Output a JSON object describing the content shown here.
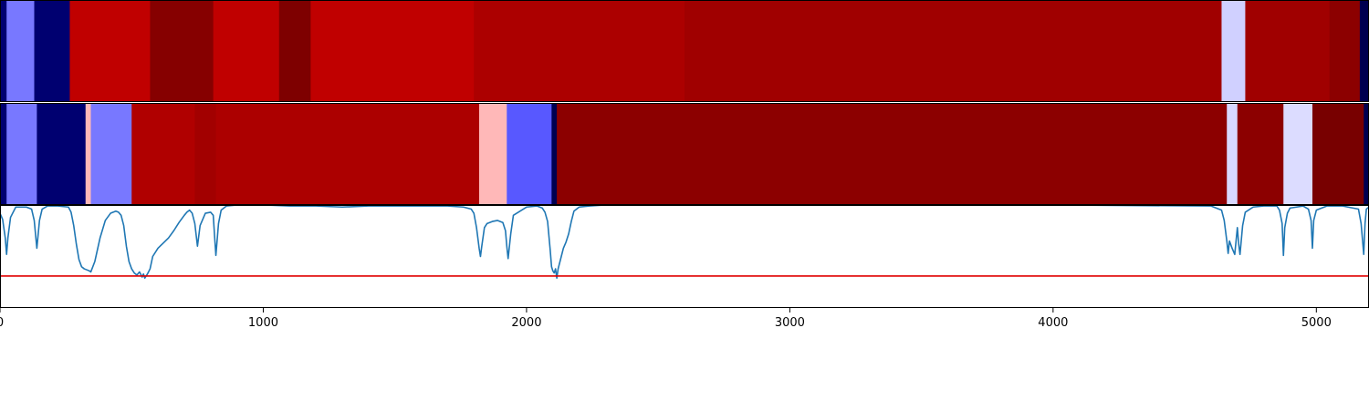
{
  "chart_data": [
    {
      "type": "heatmap",
      "xlim": [
        0,
        5200
      ],
      "segments": [
        {
          "start": 0,
          "end": 25,
          "color": "#000070"
        },
        {
          "start": 25,
          "end": 130,
          "color": "#7878ff"
        },
        {
          "start": 130,
          "end": 265,
          "color": "#000070"
        },
        {
          "start": 265,
          "end": 570,
          "color": "#c00000"
        },
        {
          "start": 570,
          "end": 810,
          "color": "#860000"
        },
        {
          "start": 810,
          "end": 1060,
          "color": "#c00000"
        },
        {
          "start": 1060,
          "end": 1180,
          "color": "#7e0000"
        },
        {
          "start": 1180,
          "end": 1800,
          "color": "#c00000"
        },
        {
          "start": 1800,
          "end": 2600,
          "color": "#ac0000"
        },
        {
          "start": 2600,
          "end": 4640,
          "color": "#a00000"
        },
        {
          "start": 4640,
          "end": 4730,
          "color": "#d0d0ff"
        },
        {
          "start": 4730,
          "end": 5050,
          "color": "#a00000"
        },
        {
          "start": 5050,
          "end": 5165,
          "color": "#8c0000"
        },
        {
          "start": 5165,
          "end": 5200,
          "color": "#000050"
        }
      ]
    },
    {
      "type": "heatmap",
      "xlim": [
        0,
        5200
      ],
      "segments": [
        {
          "start": 0,
          "end": 25,
          "color": "#000070"
        },
        {
          "start": 25,
          "end": 140,
          "color": "#7878ff"
        },
        {
          "start": 140,
          "end": 325,
          "color": "#000070"
        },
        {
          "start": 325,
          "end": 345,
          "color": "#ffb8b8"
        },
        {
          "start": 345,
          "end": 500,
          "color": "#7878ff"
        },
        {
          "start": 500,
          "end": 740,
          "color": "#b00000"
        },
        {
          "start": 740,
          "end": 820,
          "color": "#a20000"
        },
        {
          "start": 820,
          "end": 1820,
          "color": "#ac0000"
        },
        {
          "start": 1820,
          "end": 1925,
          "color": "#ffb8b8"
        },
        {
          "start": 1925,
          "end": 2095,
          "color": "#5858ff"
        },
        {
          "start": 2095,
          "end": 2115,
          "color": "#000050"
        },
        {
          "start": 2115,
          "end": 4660,
          "color": "#8c0000"
        },
        {
          "start": 4660,
          "end": 4700,
          "color": "#d8d8ff"
        },
        {
          "start": 4700,
          "end": 4875,
          "color": "#8c0000"
        },
        {
          "start": 4875,
          "end": 4985,
          "color": "#dcdcff"
        },
        {
          "start": 4985,
          "end": 5180,
          "color": "#780000"
        },
        {
          "start": 5180,
          "end": 5200,
          "color": "#000050"
        }
      ]
    },
    {
      "type": "line",
      "xlim": [
        0,
        5200
      ],
      "ylim": [
        0,
        1
      ],
      "threshold": 0.31,
      "line_color": "#1f77b4",
      "threshold_color": "#e00000",
      "x_ticks": [
        0,
        1000,
        2000,
        3000,
        4000,
        5000
      ],
      "x_tick_labels": [
        "0",
        "1000",
        "2000",
        "3000",
        "4000",
        "5000"
      ],
      "series": [
        {
          "x": [
            0,
            10,
            20,
            25,
            30,
            40,
            60,
            100,
            120,
            130,
            140,
            150,
            160,
            180,
            220,
            260,
            270,
            280,
            290,
            300,
            310,
            320,
            330,
            340,
            345,
            360,
            380,
            400,
            420,
            440,
            450,
            460,
            470,
            480,
            490,
            500,
            510,
            520,
            530,
            540,
            545,
            550,
            560,
            570,
            580,
            600,
            620,
            640,
            660,
            680,
            700,
            710,
            720,
            730,
            740,
            750,
            760,
            780,
            800,
            810,
            815,
            820,
            830,
            840,
            860,
            900,
            1000,
            1100,
            1200,
            1300,
            1400,
            1500,
            1600,
            1700,
            1760,
            1790,
            1800,
            1810,
            1820,
            1825,
            1830,
            1840,
            1850,
            1870,
            1890,
            1910,
            1920,
            1925,
            1930,
            1940,
            1950,
            2000,
            2040,
            2060,
            2070,
            2080,
            2085,
            2090,
            2095,
            2100,
            2105,
            2110,
            2115,
            2120,
            2130,
            2140,
            2150,
            2160,
            2170,
            2180,
            2200,
            2240,
            2300,
            2400,
            3000,
            4000,
            4600,
            4640,
            4650,
            4660,
            4665,
            4670,
            4680,
            4690,
            4700,
            4705,
            4710,
            4720,
            4730,
            4760,
            4800,
            4850,
            4860,
            4870,
            4875,
            4880,
            4890,
            4900,
            4950,
            4970,
            4980,
            4985,
            4990,
            5000,
            5040,
            5100,
            5160,
            5170,
            5180,
            5185,
            5190,
            5200
          ],
          "y": [
            0.92,
            0.86,
            0.68,
            0.52,
            0.68,
            0.88,
            0.98,
            0.98,
            0.96,
            0.85,
            0.58,
            0.85,
            0.96,
            0.99,
            0.99,
            0.98,
            0.93,
            0.8,
            0.62,
            0.47,
            0.4,
            0.38,
            0.37,
            0.36,
            0.35,
            0.45,
            0.68,
            0.85,
            0.92,
            0.94,
            0.93,
            0.9,
            0.8,
            0.6,
            0.45,
            0.38,
            0.34,
            0.32,
            0.35,
            0.3,
            0.33,
            0.29,
            0.33,
            0.38,
            0.5,
            0.58,
            0.63,
            0.68,
            0.75,
            0.83,
            0.9,
            0.93,
            0.95,
            0.92,
            0.82,
            0.6,
            0.8,
            0.92,
            0.93,
            0.9,
            0.7,
            0.51,
            0.82,
            0.95,
            0.99,
            1.0,
            1.0,
            0.99,
            0.99,
            0.98,
            0.99,
            0.99,
            0.99,
            0.99,
            0.98,
            0.96,
            0.92,
            0.78,
            0.58,
            0.5,
            0.6,
            0.78,
            0.82,
            0.84,
            0.85,
            0.83,
            0.75,
            0.6,
            0.48,
            0.72,
            0.9,
            0.98,
            0.99,
            0.97,
            0.93,
            0.84,
            0.7,
            0.56,
            0.4,
            0.36,
            0.34,
            0.38,
            0.29,
            0.38,
            0.48,
            0.58,
            0.64,
            0.72,
            0.84,
            0.94,
            0.98,
            0.99,
            1.0,
            1.0,
            1.0,
            1.0,
            0.99,
            0.95,
            0.85,
            0.65,
            0.53,
            0.65,
            0.58,
            0.52,
            0.78,
            0.62,
            0.52,
            0.8,
            0.93,
            0.98,
            0.99,
            0.99,
            0.95,
            0.82,
            0.51,
            0.78,
            0.92,
            0.97,
            0.99,
            0.96,
            0.85,
            0.58,
            0.85,
            0.95,
            0.99,
            0.99,
            0.96,
            0.82,
            0.52,
            0.82,
            0.96,
            0.98
          ]
        }
      ]
    }
  ]
}
